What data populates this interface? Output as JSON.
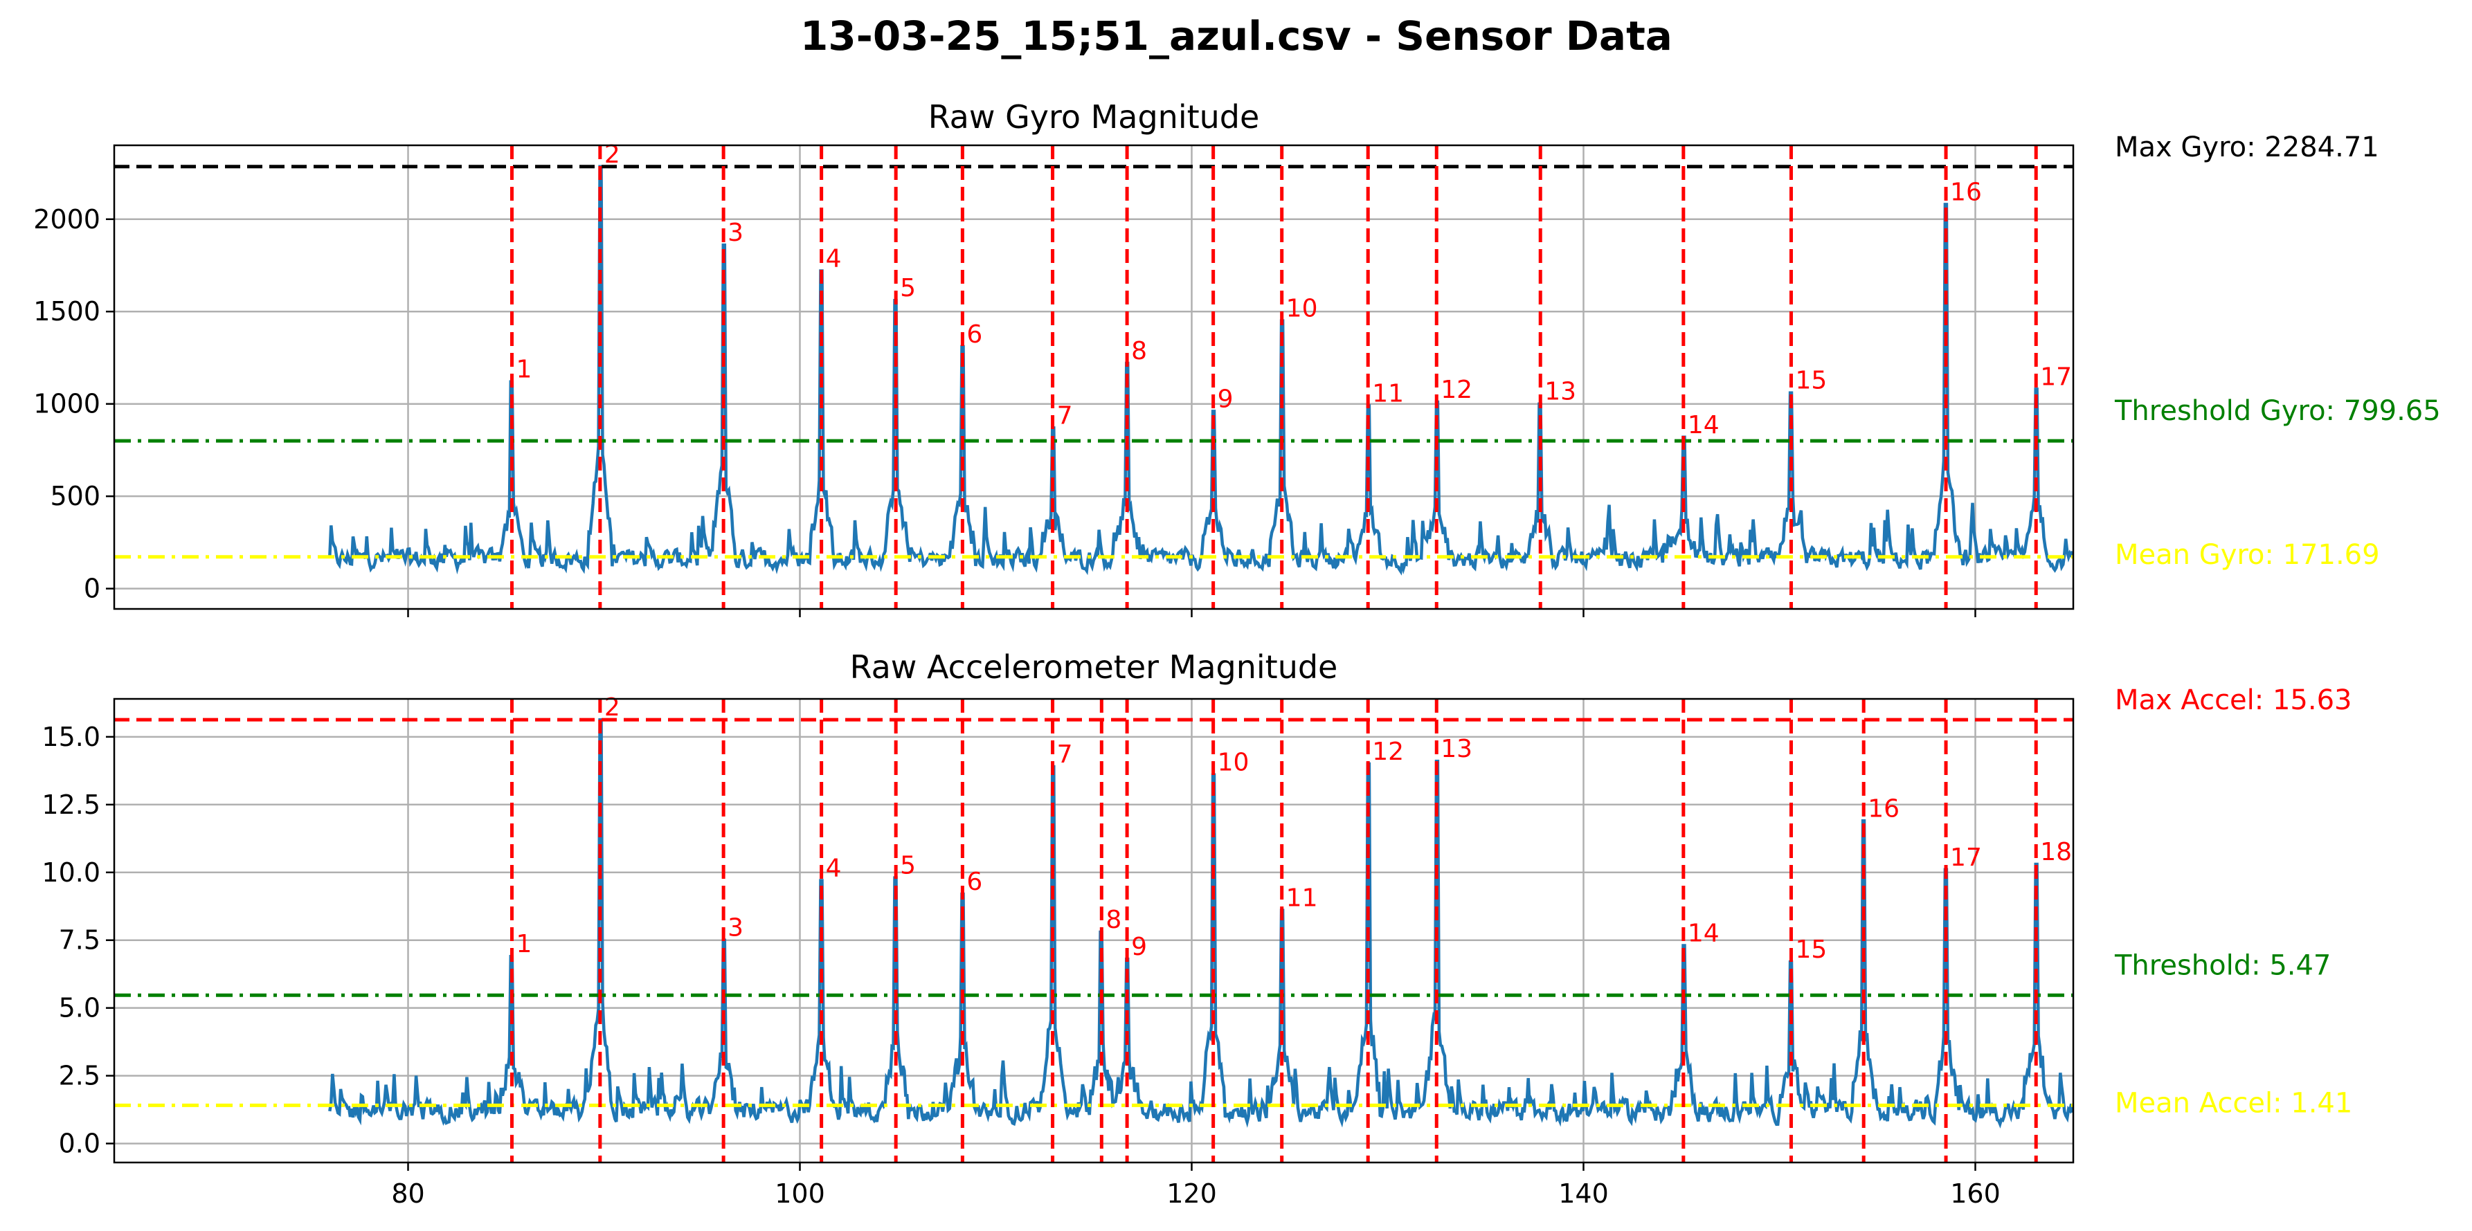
{
  "chart_data": {
    "title": "13-03-25_15;51_azul.csv - Sensor Data",
    "type": "line",
    "x_range": [
      65,
      165
    ],
    "x_ticks": [
      80,
      100,
      120,
      140,
      160
    ],
    "series_color": "#1f77b4",
    "panels": [
      {
        "key": "gyro",
        "title": "Raw  Gyro Magnitude",
        "ylim": [
          -110,
          2400
        ],
        "y_ticks": [
          0,
          500,
          1000,
          1500,
          2000
        ],
        "grid": true,
        "max": {
          "value": 2284.71,
          "label": "Max Gyro: 2284.71",
          "color": "#000000",
          "style": "dashed"
        },
        "threshold": {
          "value": 799.65,
          "label": "Threshold Gyro: 799.65",
          "color": "#008000",
          "style": "dashdot"
        },
        "mean": {
          "value": 171.69,
          "label": "Mean Gyro: 171.69",
          "color": "#ffff00",
          "style": "dashdot"
        },
        "base_level": 160,
        "noise_amp": 120,
        "peaks": [
          {
            "label": "1",
            "x": 85.3,
            "y": 1120
          },
          {
            "label": "2",
            "x": 89.8,
            "y": 2284.71
          },
          {
            "label": "3",
            "x": 96.1,
            "y": 1860
          },
          {
            "label": "4",
            "x": 101.1,
            "y": 1720
          },
          {
            "label": "5",
            "x": 104.9,
            "y": 1560
          },
          {
            "label": "6",
            "x": 108.3,
            "y": 1310
          },
          {
            "label": "7",
            "x": 112.9,
            "y": 870
          },
          {
            "label": "8",
            "x": 116.7,
            "y": 1220
          },
          {
            "label": "9",
            "x": 121.1,
            "y": 960
          },
          {
            "label": "10",
            "x": 124.6,
            "y": 1450
          },
          {
            "label": "11",
            "x": 129.0,
            "y": 990
          },
          {
            "label": "12",
            "x": 132.5,
            "y": 1010
          },
          {
            "label": "13",
            "x": 137.8,
            "y": 1000
          },
          {
            "label": "14",
            "x": 145.1,
            "y": 820
          },
          {
            "label": "15",
            "x": 150.6,
            "y": 1060
          },
          {
            "label": "16",
            "x": 158.5,
            "y": 2080
          },
          {
            "label": "17",
            "x": 163.1,
            "y": 1080
          }
        ]
      },
      {
        "key": "accel",
        "title": "Raw  Accelerometer Magnitude",
        "ylim": [
          -0.7,
          16.4
        ],
        "y_ticks": [
          0.0,
          2.5,
          5.0,
          7.5,
          10.0,
          12.5,
          15.0
        ],
        "y_tick_labels": [
          "0.0",
          "2.5",
          "5.0",
          "7.5",
          "10.0",
          "12.5",
          "15.0"
        ],
        "grid": true,
        "max": {
          "value": 15.63,
          "label": "Max Accel: 15.63",
          "color": "#ff0000",
          "style": "dashed"
        },
        "threshold": {
          "value": 5.47,
          "label": "Threshold: 5.47",
          "color": "#008000",
          "style": "dashdot"
        },
        "mean": {
          "value": 1.41,
          "label": "Mean Accel: 1.41",
          "color": "#ffff00",
          "style": "dashdot"
        },
        "base_level": 1.2,
        "noise_amp": 0.9,
        "peaks": [
          {
            "label": "1",
            "x": 85.3,
            "y": 6.9
          },
          {
            "label": "2",
            "x": 89.8,
            "y": 15.63
          },
          {
            "label": "3",
            "x": 96.1,
            "y": 7.5
          },
          {
            "label": "4",
            "x": 101.1,
            "y": 9.7
          },
          {
            "label": "5",
            "x": 104.9,
            "y": 9.8
          },
          {
            "label": "6",
            "x": 108.3,
            "y": 9.2
          },
          {
            "label": "7",
            "x": 112.9,
            "y": 13.9
          },
          {
            "label": "8",
            "x": 115.4,
            "y": 7.8
          },
          {
            "label": "9",
            "x": 116.7,
            "y": 6.8
          },
          {
            "label": "10",
            "x": 121.1,
            "y": 13.6
          },
          {
            "label": "11",
            "x": 124.6,
            "y": 8.6
          },
          {
            "label": "12",
            "x": 129.0,
            "y": 14.0
          },
          {
            "label": "13",
            "x": 132.5,
            "y": 14.1
          },
          {
            "label": "14",
            "x": 145.1,
            "y": 7.3
          },
          {
            "label": "15",
            "x": 150.6,
            "y": 6.7
          },
          {
            "label": "16",
            "x": 154.3,
            "y": 11.9
          },
          {
            "label": "17",
            "x": 158.5,
            "y": 10.1
          },
          {
            "label": "18",
            "x": 163.1,
            "y": 10.3
          }
        ]
      }
    ]
  },
  "colors": {
    "axis": "#000000",
    "grid": "#b0b0b0",
    "peak_line": "#ff0000"
  }
}
